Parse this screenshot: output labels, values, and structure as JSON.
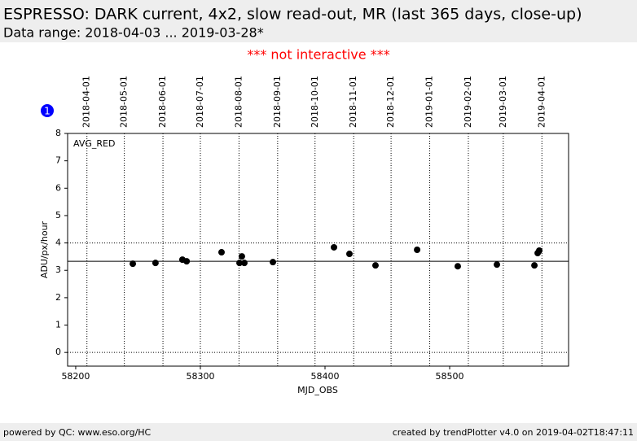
{
  "title": "ESPRESSO: DARK current, 4x2, slow read-out, MR (last 365 days, close-up)",
  "subtitle": "Data range: 2018-04-03 ... 2019-03-28*",
  "notice": "*** not interactive ***",
  "badge": "1",
  "footer_left": "powered by QC: www.eso.org/HC",
  "footer_right": "created by trendPlotter v4.0 on 2019-04-02T18:47:11",
  "chart_data": {
    "type": "scatter",
    "x_label": "MJD_OBS",
    "y_label": "ADU/px/hour",
    "series": [
      {
        "name": "AVG_RED",
        "color": "#000000",
        "x": [
          58245.8,
          58264.0,
          58285.6,
          58289.0,
          58317.0,
          58331.4,
          58333.3,
          58335.3,
          58358.2,
          58407.2,
          58419.6,
          58440.5,
          58473.9,
          58506.5,
          58537.9,
          58568.0,
          58570.6,
          58571.9
        ],
        "values": [
          3.24,
          3.27,
          3.39,
          3.33,
          3.66,
          3.27,
          3.51,
          3.27,
          3.3,
          3.84,
          3.6,
          3.18,
          3.75,
          3.15,
          3.21,
          3.18,
          3.63,
          3.72
        ]
      }
    ],
    "hlines": [
      {
        "value": 3.33,
        "dashed": false
      },
      {
        "value": 4.0,
        "dashed": true
      },
      {
        "value": 0,
        "dashed": true
      }
    ],
    "xlim": [
      58193.5,
      58595.4
    ],
    "ylim": [
      -0.5,
      8
    ],
    "xticks": [
      58200,
      58300,
      58400,
      58500
    ],
    "yticks": [
      0,
      1,
      2,
      3,
      4,
      5,
      6,
      7,
      8
    ],
    "top_ticks": [
      {
        "value": 58209,
        "label": "2018-04-01"
      },
      {
        "value": 58239,
        "label": "2018-05-01"
      },
      {
        "value": 58270,
        "label": "2018-06-01"
      },
      {
        "value": 58300,
        "label": "2018-07-01"
      },
      {
        "value": 58331,
        "label": "2018-08-01"
      },
      {
        "value": 58362,
        "label": "2018-09-01"
      },
      {
        "value": 58392,
        "label": "2018-10-01"
      },
      {
        "value": 58423,
        "label": "2018-11-01"
      },
      {
        "value": 58453,
        "label": "2018-12-01"
      },
      {
        "value": 58484,
        "label": "2019-01-01"
      },
      {
        "value": 58515,
        "label": "2019-02-01"
      },
      {
        "value": 58543,
        "label": "2019-03-01"
      },
      {
        "value": 58574,
        "label": "2019-04-01"
      }
    ],
    "grid": true
  }
}
